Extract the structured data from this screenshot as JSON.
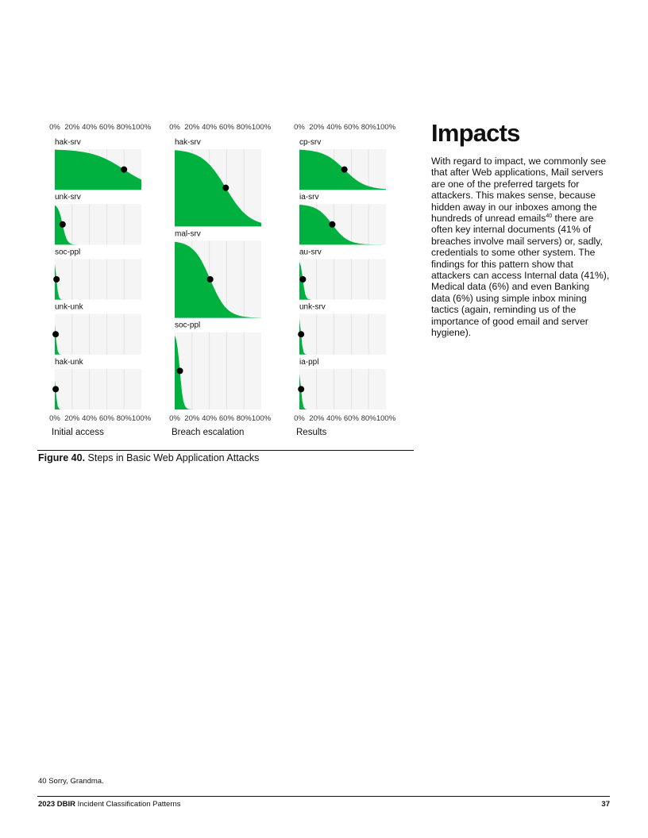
{
  "chart_data": {
    "type": "area",
    "tick_labels": [
      "0%",
      "20%",
      "40%",
      "60%",
      "80%",
      "100%"
    ],
    "xlim": [
      0,
      100
    ],
    "fill_color": "#00b140",
    "panel_bg": "#f5f5f5",
    "point_color": "#000000",
    "columns": [
      {
        "xlabel": "Initial access",
        "panels": [
          {
            "label": "hak-srv",
            "value": 80
          },
          {
            "label": "unk-srv",
            "value": 9
          },
          {
            "label": "soc-ppl",
            "value": 2
          },
          {
            "label": "unk-unk",
            "value": 1
          },
          {
            "label": "hak-unk",
            "value": 1
          }
        ]
      },
      {
        "xlabel": "Breach escalation",
        "panels": [
          {
            "label": "hak-srv",
            "value": 59
          },
          {
            "label": "mal-srv",
            "value": 41
          },
          {
            "label": "soc-ppl",
            "value": 6
          }
        ]
      },
      {
        "xlabel": "Results",
        "panels": [
          {
            "label": "cp-srv",
            "value": 52
          },
          {
            "label": "ia-srv",
            "value": 38
          },
          {
            "label": "au-srv",
            "value": 4
          },
          {
            "label": "unk-srv",
            "value": 2
          },
          {
            "label": "ia-ppl",
            "value": 2
          }
        ]
      }
    ]
  },
  "figure": {
    "caption_bold": "Figure 40.",
    "caption_text": " Steps in Basic Web Application Attacks"
  },
  "impacts": {
    "title": "Impacts",
    "body_part1": "With regard to impact, we commonly see that after Web applications, Mail servers are one of the preferred targets for attackers. This makes sense, because hidden away in our inboxes among the hundreds of unread emails",
    "footnote_ref": "40",
    "body_part2": " there are often key internal documents (41% of breaches involve mail servers) or, sadly, credentials to some other system. The findings for this pattern show that attackers can access Internal data (41%), Medical data (6%) and even Banking data (6%) using simple inbox mining tactics (again, reminding us of the importance of good email and server hygiene)."
  },
  "footnote": {
    "number": "40",
    "text": "Sorry, Grandma."
  },
  "footer": {
    "report_bold": "2023 DBIR",
    "report_rest": " Incident Classification Patterns",
    "page_number": "37"
  }
}
